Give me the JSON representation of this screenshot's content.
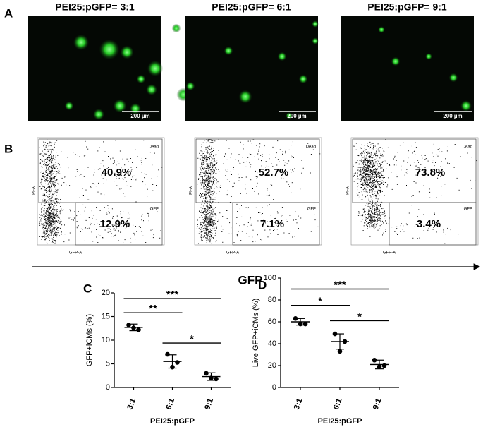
{
  "panel_a": {
    "label": "A",
    "images": [
      {
        "title": "PEI25:pGFP= 3:1",
        "scale_bar": "200 µm"
      },
      {
        "title": "PEI25:pGFP= 6:1",
        "scale_bar": "200 µm"
      },
      {
        "title": "PEI25:pGFP= 9:1",
        "scale_bar": "200 µm"
      }
    ]
  },
  "panel_b": {
    "label": "B",
    "x_axis_label": "GFP",
    "plot_y_label": "PI-A",
    "plot_x_label": "GFP-A",
    "dead_gate": "Dead",
    "gfp_gate": "GFP",
    "plots": [
      {
        "dead": "40.9%",
        "gfp": "12.9%"
      },
      {
        "dead": "52.7%",
        "gfp": "7.1%"
      },
      {
        "dead": "73.8%",
        "gfp": "3.4%"
      }
    ]
  },
  "chart_data": [
    {
      "type": "dot",
      "label": "C",
      "categories": [
        "3:1",
        "6:1",
        "9:1"
      ],
      "points": [
        [
          13.2,
          12.2,
          12.6
        ],
        [
          7.0,
          5.3,
          4.3
        ],
        [
          3.0,
          1.8,
          2.0
        ]
      ],
      "means": [
        12.7,
        5.5,
        2.3
      ],
      "sd": [
        0.7,
        1.4,
        0.8
      ],
      "ylim": [
        0,
        20
      ],
      "yticks": [
        0,
        5,
        10,
        15,
        20
      ],
      "ylabel": "GFP+iCMs (%)",
      "xlabel": "PEI25:pGFP",
      "comparisons": [
        {
          "between": [
            "3:1",
            "6:1"
          ],
          "label": "**"
        },
        {
          "between": [
            "6:1",
            "9:1"
          ],
          "label": "*"
        },
        {
          "between": [
            "3:1",
            "9:1"
          ],
          "label": "***"
        }
      ]
    },
    {
      "type": "dot",
      "label": "D",
      "categories": [
        "3:1",
        "6:1",
        "9:1"
      ],
      "points": [
        [
          63,
          58,
          58
        ],
        [
          49,
          42,
          33
        ],
        [
          25,
          20,
          19
        ]
      ],
      "means": [
        60,
        42,
        21
      ],
      "sd": [
        3,
        7,
        4
      ],
      "ylim": [
        0,
        100
      ],
      "yticks": [
        0,
        20,
        40,
        60,
        80,
        100
      ],
      "ylabel": "Live GFP+iCMs (%)",
      "xlabel": "PEI25:pGFP",
      "comparisons": [
        {
          "between": [
            "3:1",
            "6:1"
          ],
          "label": "*"
        },
        {
          "between": [
            "6:1",
            "9:1"
          ],
          "label": "*"
        },
        {
          "between": [
            "3:1",
            "9:1"
          ],
          "label": "***"
        }
      ]
    }
  ]
}
